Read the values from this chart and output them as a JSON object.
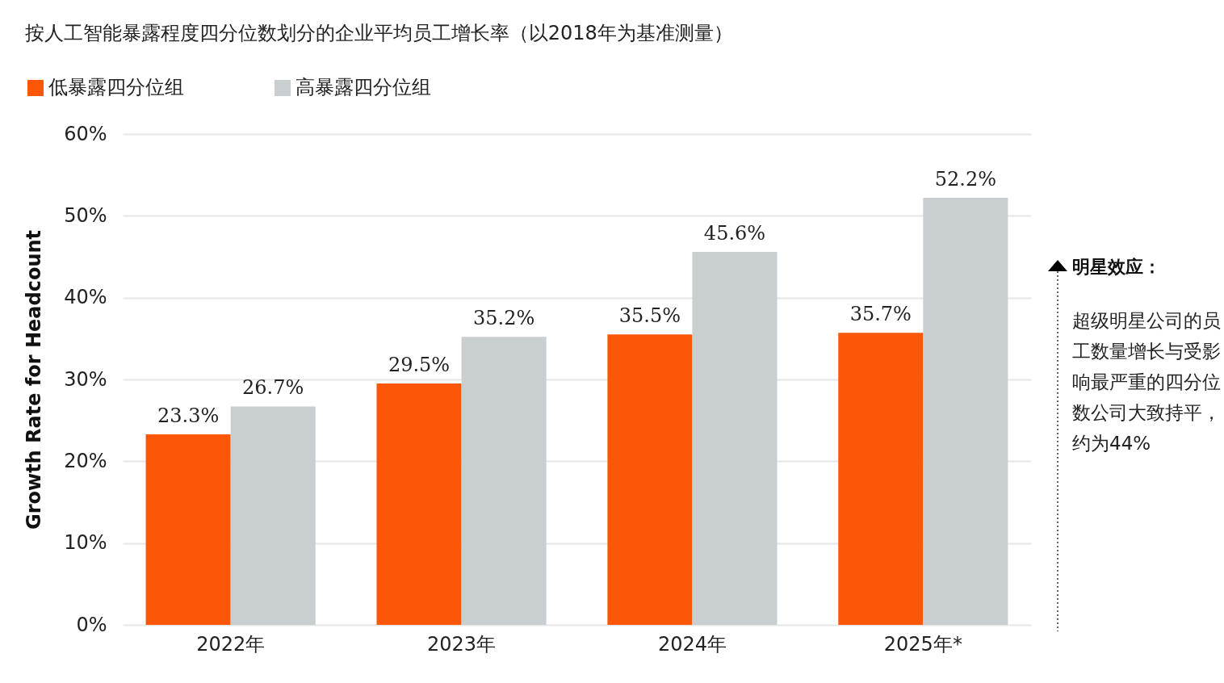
{
  "chart_data": {
    "type": "bar",
    "title": "按人工智能暴露程度四分位数划分的企业平均员工增长率（以2018年为基准测量）",
    "ylabel": "Growth Rate for Headcount",
    "categories": [
      "2022年",
      "2023年",
      "2024年",
      "2025年*"
    ],
    "series": [
      {
        "name": "低暴露四分位组",
        "color": "#fc5608",
        "values": [
          23.3,
          29.5,
          35.5,
          35.7
        ],
        "value_labels": [
          "23.3%",
          "29.5%",
          "35.5%",
          "35.7%"
        ]
      },
      {
        "name": "高暴露四分位组",
        "color": "#c9ced1",
        "values": [
          26.7,
          35.2,
          45.6,
          52.2
        ],
        "value_labels": [
          "26.7%",
          "35.2%",
          "45.6%",
          "52.2%"
        ]
      }
    ],
    "ylim": [
      0,
      60
    ],
    "yticks": [
      {
        "value": 0,
        "label": "0%"
      },
      {
        "value": 10,
        "label": "10%"
      },
      {
        "value": 20,
        "label": "20%"
      },
      {
        "value": 30,
        "label": "30%"
      },
      {
        "value": 40,
        "label": "40%"
      },
      {
        "value": 50,
        "label": "50%"
      },
      {
        "value": 60,
        "label": "60%"
      }
    ],
    "grid": "y",
    "legend": "top left",
    "annotations": [
      "明星效应：",
      "超级明星公司的员工数量增长与受影响最严重的四分位数公司大致持平，约为44%"
    ]
  }
}
